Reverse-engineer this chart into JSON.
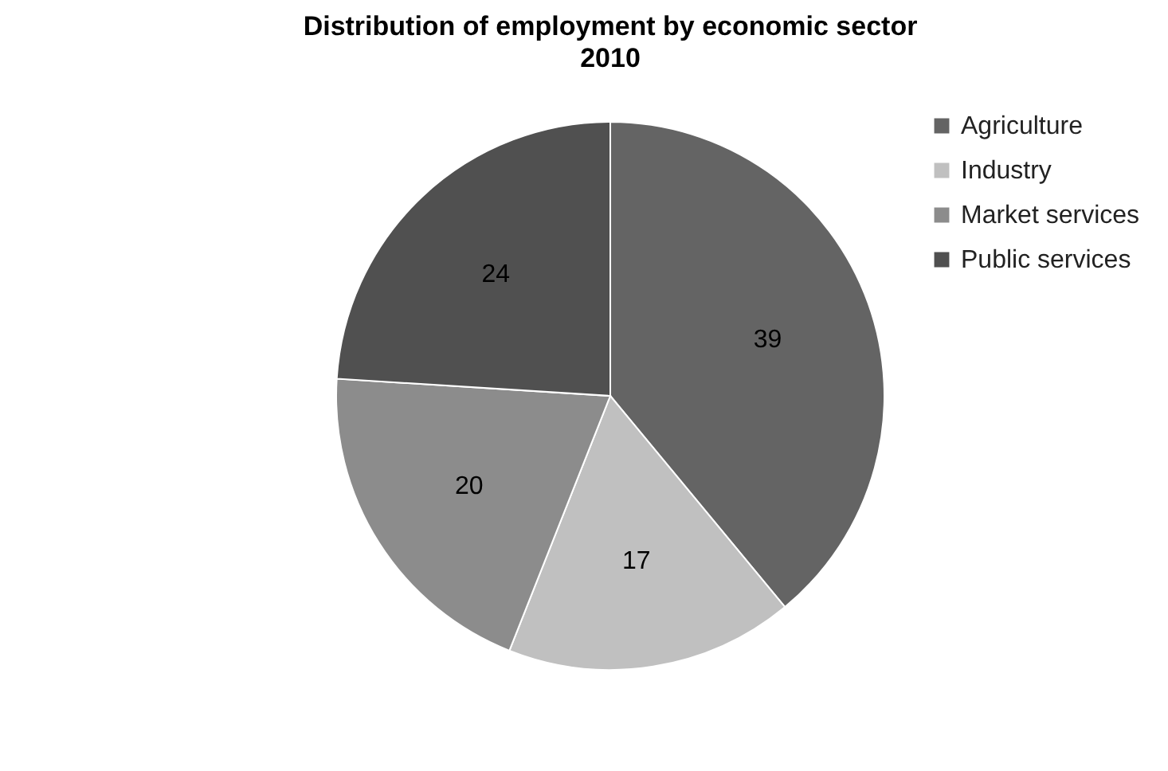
{
  "chart_data": {
    "type": "pie",
    "title": "Distribution of employment by economic sector",
    "subtitle": "2010",
    "categories": [
      "Agriculture",
      "Industry",
      "Market services",
      "Public services"
    ],
    "values": [
      39,
      17,
      20,
      24
    ],
    "colors": [
      "#646464",
      "#c0c0c0",
      "#8c8c8c",
      "#505050"
    ],
    "data_labels": true,
    "legend": "right"
  }
}
